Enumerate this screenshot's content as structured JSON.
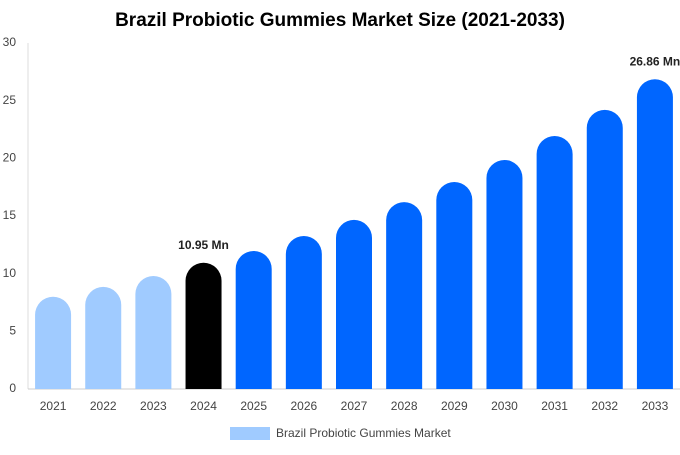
{
  "chart_data": {
    "type": "bar",
    "title": "Brazil Probiotic Gummies Market Size (2021-2033)",
    "categories": [
      "2021",
      "2022",
      "2023",
      "2024",
      "2025",
      "2026",
      "2027",
      "2028",
      "2029",
      "2030",
      "2031",
      "2032",
      "2033"
    ],
    "series": [
      {
        "name": "Brazil Probiotic Gummies Market",
        "color": "#a0cbff",
        "values": [
          8.0,
          8.85,
          9.8,
          10.95,
          11.97,
          13.27,
          14.66,
          16.2,
          17.95,
          19.86,
          21.94,
          24.2,
          26.86
        ],
        "colors": [
          "#a0cbff",
          "#a0cbff",
          "#a0cbff",
          "#000000",
          "#0066ff",
          "#0066ff",
          "#0066ff",
          "#0066ff",
          "#0066ff",
          "#0066ff",
          "#0066ff",
          "#0066ff",
          "#0066ff"
        ],
        "value_labels": [
          null,
          null,
          null,
          "10.95 Mn",
          null,
          null,
          null,
          null,
          null,
          null,
          null,
          null,
          "26.86 Mn"
        ]
      }
    ],
    "ylim": [
      0,
      30
    ],
    "yticks": [
      0,
      5,
      10,
      15,
      20,
      25,
      30
    ],
    "grid": false,
    "legend": "bottom"
  }
}
